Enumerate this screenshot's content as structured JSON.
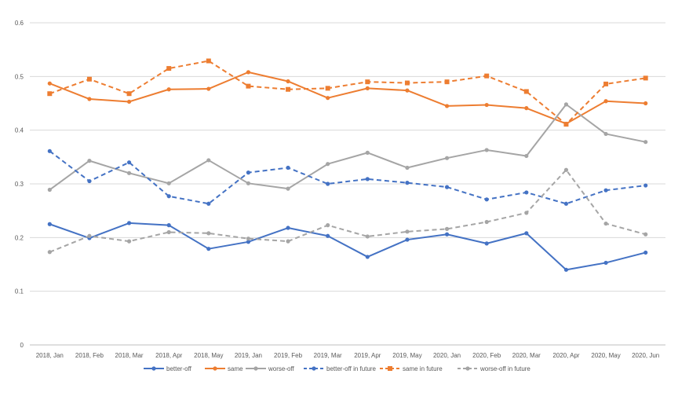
{
  "chart_data": {
    "type": "line",
    "title": "",
    "xlabel": "",
    "ylabel": "",
    "ylim": [
      0,
      0.6
    ],
    "yticks": [
      "0",
      "0.1",
      "0.2",
      "0.3",
      "0.4",
      "0.5",
      "0.6"
    ],
    "ytick_values": [
      0,
      0.1,
      0.2,
      0.3,
      0.4,
      0.5,
      0.6
    ],
    "grid": "horizontal",
    "legend_position": "bottom",
    "categories": [
      "2018, Jan",
      "2018, Feb",
      "2018, Mar",
      "2018, Apr",
      "2018, May",
      "2019, Jan",
      "2019, Feb",
      "2019, Mar",
      "2019, Apr",
      "2019, May",
      "2020, Jan",
      "2020, Feb",
      "2020, Mar",
      "2020, Apr",
      "2020, May",
      "2020, Jun"
    ],
    "series": [
      {
        "name": "better-off",
        "color": "#4472c4",
        "dash": "solid",
        "marker": "circle",
        "values": [
          0.225,
          0.199,
          0.227,
          0.223,
          0.179,
          0.192,
          0.218,
          0.203,
          0.164,
          0.196,
          0.206,
          0.189,
          0.208,
          0.14,
          0.153,
          0.172
        ]
      },
      {
        "name": "same",
        "color": "#ed7d31",
        "dash": "solid",
        "marker": "circle",
        "values": [
          0.487,
          0.458,
          0.453,
          0.476,
          0.477,
          0.508,
          0.491,
          0.46,
          0.478,
          0.474,
          0.445,
          0.447,
          0.441,
          0.412,
          0.454,
          0.45
        ]
      },
      {
        "name": "worse-off",
        "color": "#a5a5a5",
        "dash": "solid",
        "marker": "circle",
        "values": [
          0.289,
          0.343,
          0.32,
          0.301,
          0.344,
          0.301,
          0.291,
          0.337,
          0.358,
          0.33,
          0.348,
          0.363,
          0.352,
          0.448,
          0.393,
          0.378
        ]
      },
      {
        "name": "better-off in future",
        "color": "#4472c4",
        "dash": "dashed",
        "marker": "circle",
        "values": [
          0.361,
          0.305,
          0.34,
          0.277,
          0.263,
          0.321,
          0.33,
          0.3,
          0.309,
          0.302,
          0.294,
          0.271,
          0.284,
          0.263,
          0.288,
          0.297
        ]
      },
      {
        "name": "same in future",
        "color": "#ed7d31",
        "dash": "dashed",
        "marker": "square",
        "values": [
          0.468,
          0.495,
          0.468,
          0.515,
          0.529,
          0.482,
          0.476,
          0.478,
          0.49,
          0.488,
          0.49,
          0.501,
          0.472,
          0.411,
          0.486,
          0.497
        ]
      },
      {
        "name": "worse-off in future",
        "color": "#a5a5a5",
        "dash": "dashed",
        "marker": "circle",
        "values": [
          0.173,
          0.203,
          0.193,
          0.21,
          0.208,
          0.198,
          0.193,
          0.223,
          0.202,
          0.211,
          0.216,
          0.229,
          0.246,
          0.326,
          0.226,
          0.206
        ]
      }
    ]
  }
}
